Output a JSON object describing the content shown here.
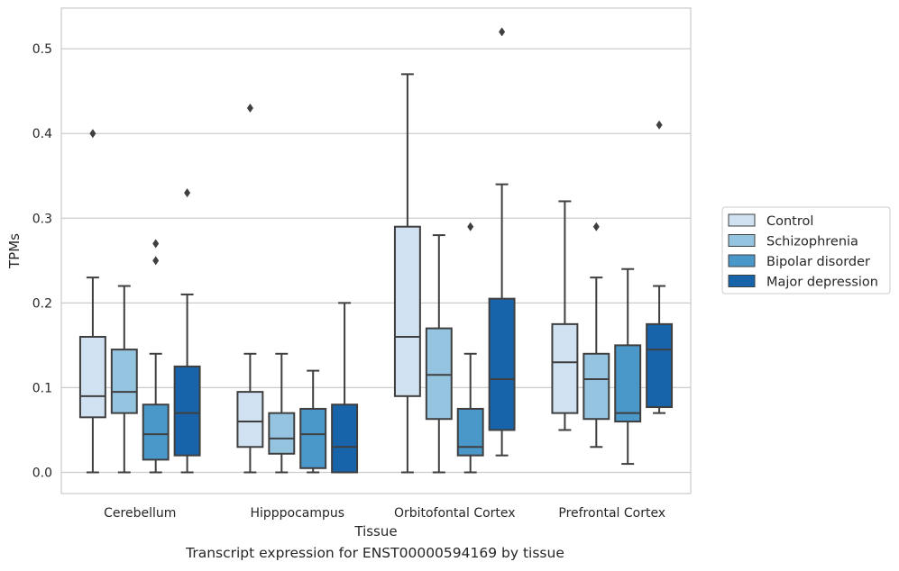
{
  "caption": "Transcript expression for ENST00000594169 by tissue",
  "chart_data": {
    "type": "boxplot",
    "xlabel": "Tissue",
    "ylabel": "TPMs",
    "ylim": [
      -0.025,
      0.548
    ],
    "yticks": [
      0.0,
      0.1,
      0.2,
      0.3,
      0.4,
      0.5
    ],
    "ytick_labels": [
      "0.0",
      "0.1",
      "0.2",
      "0.3",
      "0.4",
      "0.5"
    ],
    "grid": "horizontal",
    "legend_position": "right",
    "categories": [
      "Cerebellum",
      "Hipppocampus",
      "Orbitofontal Cortex",
      "Prefrontal Cortex"
    ],
    "series": [
      {
        "name": "Control",
        "color": "#d0e1f2",
        "boxes": [
          {
            "whisker_low": 0.0,
            "q1": 0.065,
            "median": 0.09,
            "q3": 0.16,
            "whisker_high": 0.23,
            "outliers": [
              0.4
            ]
          },
          {
            "whisker_low": 0.0,
            "q1": 0.03,
            "median": 0.06,
            "q3": 0.095,
            "whisker_high": 0.14,
            "outliers": [
              0.43
            ]
          },
          {
            "whisker_low": 0.0,
            "q1": 0.09,
            "median": 0.16,
            "q3": 0.29,
            "whisker_high": 0.47,
            "outliers": []
          },
          {
            "whisker_low": 0.05,
            "q1": 0.07,
            "median": 0.13,
            "q3": 0.175,
            "whisker_high": 0.32,
            "outliers": []
          }
        ]
      },
      {
        "name": "Schizophrenia",
        "color": "#94c4df",
        "boxes": [
          {
            "whisker_low": 0.0,
            "q1": 0.07,
            "median": 0.095,
            "q3": 0.145,
            "whisker_high": 0.22,
            "outliers": []
          },
          {
            "whisker_low": 0.0,
            "q1": 0.022,
            "median": 0.04,
            "q3": 0.07,
            "whisker_high": 0.14,
            "outliers": []
          },
          {
            "whisker_low": 0.0,
            "q1": 0.063,
            "median": 0.115,
            "q3": 0.17,
            "whisker_high": 0.28,
            "outliers": []
          },
          {
            "whisker_low": 0.03,
            "q1": 0.063,
            "median": 0.11,
            "q3": 0.14,
            "whisker_high": 0.23,
            "outliers": [
              0.29
            ]
          }
        ]
      },
      {
        "name": "Bipolar disorder",
        "color": "#4a98c9",
        "boxes": [
          {
            "whisker_low": 0.0,
            "q1": 0.015,
            "median": 0.045,
            "q3": 0.08,
            "whisker_high": 0.14,
            "outliers": [
              0.25,
              0.27
            ]
          },
          {
            "whisker_low": 0.0,
            "q1": 0.005,
            "median": 0.045,
            "q3": 0.075,
            "whisker_high": 0.12,
            "outliers": []
          },
          {
            "whisker_low": 0.0,
            "q1": 0.02,
            "median": 0.03,
            "q3": 0.075,
            "whisker_high": 0.14,
            "outliers": [
              0.29
            ]
          },
          {
            "whisker_low": 0.01,
            "q1": 0.06,
            "median": 0.07,
            "q3": 0.15,
            "whisker_high": 0.24,
            "outliers": []
          }
        ]
      },
      {
        "name": "Major depression",
        "color": "#1764ab",
        "boxes": [
          {
            "whisker_low": 0.0,
            "q1": 0.02,
            "median": 0.07,
            "q3": 0.125,
            "whisker_high": 0.21,
            "outliers": [
              0.33
            ]
          },
          {
            "whisker_low": 0.0,
            "q1": 0.0,
            "median": 0.03,
            "q3": 0.08,
            "whisker_high": 0.2,
            "outliers": []
          },
          {
            "whisker_low": 0.02,
            "q1": 0.05,
            "median": 0.11,
            "q3": 0.205,
            "whisker_high": 0.34,
            "outliers": [
              0.52
            ]
          },
          {
            "whisker_low": 0.07,
            "q1": 0.077,
            "median": 0.145,
            "q3": 0.175,
            "whisker_high": 0.22,
            "outliers": [
              0.41
            ]
          }
        ]
      }
    ]
  }
}
